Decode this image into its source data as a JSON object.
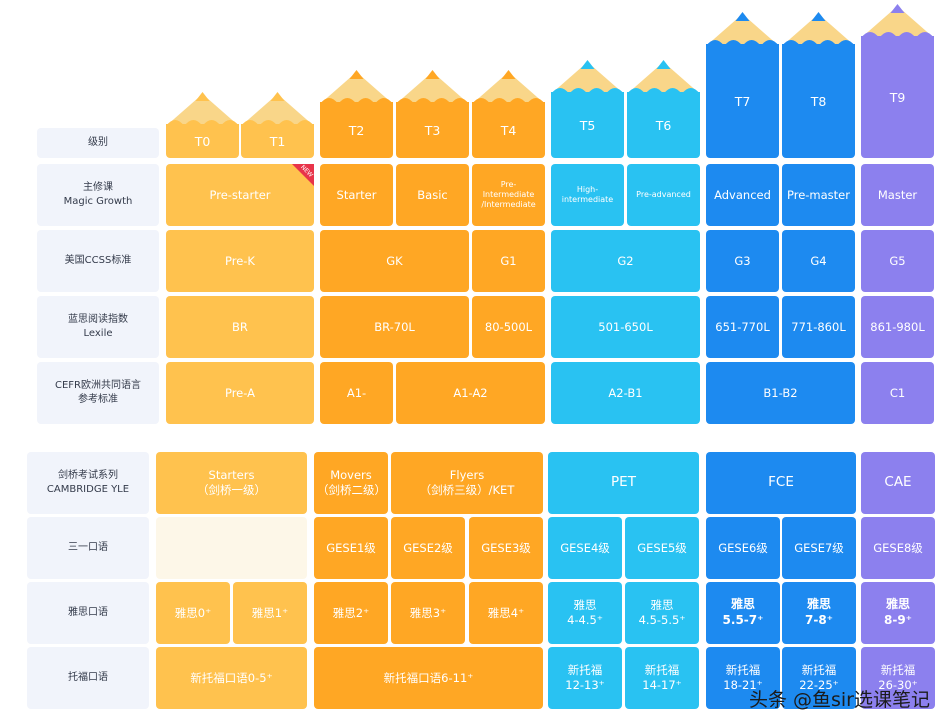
{
  "colors": {
    "y1": "#ffc24e",
    "y2": "#ffa724",
    "b1": "#29c2f2",
    "b2": "#1d8af0",
    "p": "#8c80ee",
    "empty": "#fdf7e8",
    "wood": "#f9d689"
  },
  "levels": [
    {
      "id": "T0",
      "color": "y1",
      "h": "low"
    },
    {
      "id": "T1",
      "color": "y1",
      "h": "low"
    },
    {
      "id": "T2",
      "color": "y2",
      "h": "mid1"
    },
    {
      "id": "T3",
      "color": "y2",
      "h": "mid1"
    },
    {
      "id": "T4",
      "color": "y2",
      "h": "mid1"
    },
    {
      "id": "T5",
      "color": "b1",
      "h": "mid2"
    },
    {
      "id": "T6",
      "color": "b1",
      "h": "mid2"
    },
    {
      "id": "T7",
      "color": "b2",
      "h": "high"
    },
    {
      "id": "T8",
      "color": "b2",
      "h": "high"
    },
    {
      "id": "T9",
      "color": "p",
      "h": "top"
    }
  ],
  "top_labels": [
    "级别",
    "主修课\nMagic Growth",
    "美国CCSS标准",
    "蓝思阅读指数\nLexile",
    "CEFR欧洲共同语言\n参考标准"
  ],
  "top_rows": [
    [
      {
        "text": "Pre-starter",
        "span": [
          0,
          1
        ],
        "color": "y1"
      },
      {
        "text": "Starter",
        "span": [
          2,
          2
        ],
        "color": "y2"
      },
      {
        "text": "Basic",
        "span": [
          3,
          3
        ],
        "color": "y2"
      },
      {
        "text": "Pre-\nIntermediate\n/Intermediate",
        "span": [
          4,
          4
        ],
        "color": "y2",
        "small": true
      },
      {
        "text": "High-\nintermediate",
        "span": [
          5,
          5
        ],
        "color": "b1",
        "small": true
      },
      {
        "text": "Pre-advanced",
        "span": [
          6,
          6
        ],
        "color": "b1",
        "small": true
      },
      {
        "text": "Advanced",
        "span": [
          7,
          7
        ],
        "color": "b2"
      },
      {
        "text": "Pre-master",
        "span": [
          8,
          8
        ],
        "color": "b2"
      },
      {
        "text": "Master",
        "span": [
          9,
          9
        ],
        "color": "p"
      }
    ],
    [
      {
        "text": "Pre-K",
        "span": [
          0,
          1
        ],
        "color": "y1"
      },
      {
        "text": "GK",
        "span": [
          2,
          3
        ],
        "color": "y2"
      },
      {
        "text": "G1",
        "span": [
          4,
          4
        ],
        "color": "y2"
      },
      {
        "text": "G2",
        "span": [
          5,
          6
        ],
        "color": "b1"
      },
      {
        "text": "G3",
        "span": [
          7,
          7
        ],
        "color": "b2"
      },
      {
        "text": "G4",
        "span": [
          8,
          8
        ],
        "color": "b2"
      },
      {
        "text": "G5",
        "span": [
          9,
          9
        ],
        "color": "p"
      }
    ],
    [
      {
        "text": "BR",
        "span": [
          0,
          1
        ],
        "color": "y1"
      },
      {
        "text": "BR-70L",
        "span": [
          2,
          3
        ],
        "color": "y2"
      },
      {
        "text": "80-500L",
        "span": [
          4,
          4
        ],
        "color": "y2"
      },
      {
        "text": "501-650L",
        "span": [
          5,
          6
        ],
        "color": "b1"
      },
      {
        "text": "651-770L",
        "span": [
          7,
          7
        ],
        "color": "b2"
      },
      {
        "text": "771-860L",
        "span": [
          8,
          8
        ],
        "color": "b2"
      },
      {
        "text": "861-980L",
        "span": [
          9,
          9
        ],
        "color": "p"
      }
    ],
    [
      {
        "text": "Pre-A",
        "span": [
          0,
          1
        ],
        "color": "y1"
      },
      {
        "text": "A1-",
        "span": [
          2,
          2
        ],
        "color": "y2"
      },
      {
        "text": "A1-A2",
        "span": [
          3,
          4
        ],
        "color": "y2"
      },
      {
        "text": "A2-B1",
        "span": [
          5,
          6
        ],
        "color": "b1"
      },
      {
        "text": "B1-B2",
        "span": [
          7,
          8
        ],
        "color": "b2"
      },
      {
        "text": "C1",
        "span": [
          9,
          9
        ],
        "color": "p"
      }
    ]
  ],
  "bottom_labels": [
    "剑桥考试系列\nCAMBRIDGE YLE",
    "三一口语",
    "雅思口语",
    "托福口语"
  ],
  "bottom_rows": [
    [
      {
        "text": "Starters\n（剑桥一级）",
        "span": [
          0,
          1
        ],
        "color": "y1"
      },
      {
        "text": "Movers\n（剑桥二级）",
        "span": [
          2,
          2
        ],
        "color": "y2"
      },
      {
        "text": "Flyers\n（剑桥三级）/KET",
        "span": [
          3,
          4
        ],
        "color": "y2"
      },
      {
        "text": "PET",
        "span": [
          5,
          6
        ],
        "color": "b1",
        "big": true
      },
      {
        "text": "FCE",
        "span": [
          7,
          8
        ],
        "color": "b2",
        "big": true
      },
      {
        "text": "CAE",
        "span": [
          9,
          9
        ],
        "color": "p",
        "big": true
      }
    ],
    [
      {
        "text": "",
        "span": [
          0,
          1
        ],
        "color": "empty"
      },
      {
        "text": "GESE1级",
        "span": [
          2,
          2
        ],
        "color": "y2"
      },
      {
        "text": "GESE2级",
        "span": [
          3,
          3
        ],
        "color": "y2"
      },
      {
        "text": "GESE3级",
        "span": [
          4,
          4
        ],
        "color": "y2"
      },
      {
        "text": "GESE4级",
        "span": [
          5,
          5
        ],
        "color": "b1"
      },
      {
        "text": "GESE5级",
        "span": [
          6,
          6
        ],
        "color": "b1"
      },
      {
        "text": "GESE6级",
        "span": [
          7,
          7
        ],
        "color": "b2"
      },
      {
        "text": "GESE7级",
        "span": [
          8,
          8
        ],
        "color": "b2"
      },
      {
        "text": "GESE8级",
        "span": [
          9,
          9
        ],
        "color": "p"
      }
    ],
    [
      {
        "text": "雅思0⁺",
        "span": [
          0,
          0
        ],
        "color": "y1"
      },
      {
        "text": "雅思1⁺",
        "span": [
          1,
          1
        ],
        "color": "y1"
      },
      {
        "text": "雅思2⁺",
        "span": [
          2,
          2
        ],
        "color": "y2"
      },
      {
        "text": "雅思3⁺",
        "span": [
          3,
          3
        ],
        "color": "y2"
      },
      {
        "text": "雅思4⁺",
        "span": [
          4,
          4
        ],
        "color": "y2"
      },
      {
        "text": "雅思\n4-4.5⁺",
        "span": [
          5,
          5
        ],
        "color": "b1"
      },
      {
        "text": "雅思\n4.5-5.5⁺",
        "span": [
          6,
          6
        ],
        "color": "b1"
      },
      {
        "text": "雅思\n5.5-7⁺",
        "span": [
          7,
          7
        ],
        "color": "b2",
        "bold": true
      },
      {
        "text": "雅思\n7-8⁺",
        "span": [
          8,
          8
        ],
        "color": "b2",
        "bold": true
      },
      {
        "text": "雅思\n8-9⁺",
        "span": [
          9,
          9
        ],
        "color": "p",
        "bold": true
      }
    ],
    [
      {
        "text": "新托福口语0-5⁺",
        "span": [
          0,
          1
        ],
        "color": "y1"
      },
      {
        "text": "新托福口语6-11⁺",
        "span": [
          2,
          4
        ],
        "color": "y2"
      },
      {
        "text": "新托福\n12-13⁺",
        "span": [
          5,
          5
        ],
        "color": "b1"
      },
      {
        "text": "新托福\n14-17⁺",
        "span": [
          6,
          6
        ],
        "color": "b1"
      },
      {
        "text": "新托福\n18-21⁺",
        "span": [
          7,
          7
        ],
        "color": "b2"
      },
      {
        "text": "新托福\n22-25⁺",
        "span": [
          8,
          8
        ],
        "color": "b2"
      },
      {
        "text": "新托福\n26-30⁺",
        "span": [
          9,
          9
        ],
        "color": "p"
      }
    ]
  ],
  "badge_text": "NEW",
  "watermark": "头条 @鱼sir选课笔记"
}
